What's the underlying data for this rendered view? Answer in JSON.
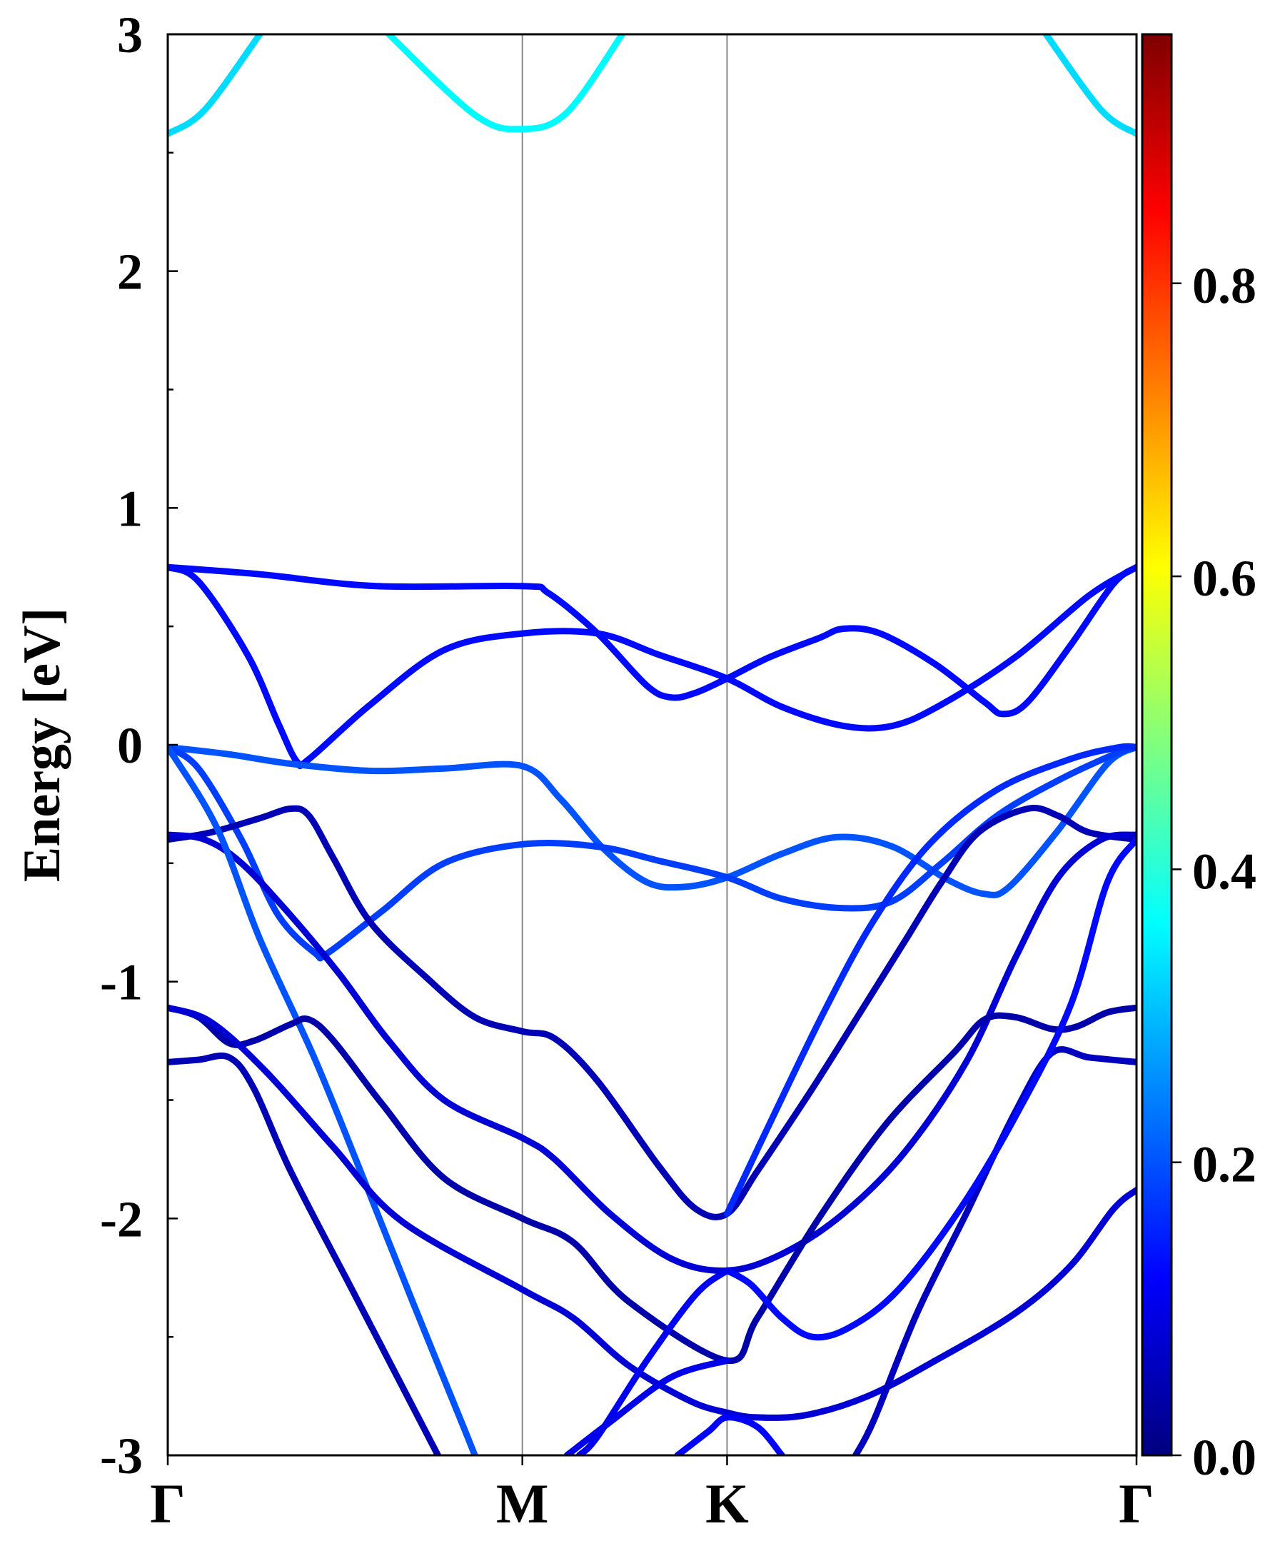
{
  "chart_data": {
    "type": "line",
    "title": "",
    "xlabel": "",
    "ylabel": "Energy [eV]",
    "ylim": [
      -3,
      3
    ],
    "y_ticks": [
      "3",
      "2",
      "1",
      "0",
      "-1",
      "-2",
      "-3"
    ],
    "y_tick_values": [
      3,
      2,
      1,
      0,
      -1,
      -2,
      -3
    ],
    "x_ticks": [
      "Γ",
      "M",
      "K",
      "Γ"
    ],
    "x_tick_positions": [
      0,
      0.5774,
      0.9107,
      1.5774
    ],
    "grid": false,
    "colorbar": {
      "colormap": "jet",
      "range": [
        0,
        0.97
      ],
      "tick_labels": [
        "0.8",
        "0.6",
        "0.4",
        "0.2",
        "0.0"
      ],
      "tick_values": [
        0.8,
        0.6,
        0.4,
        0.2,
        0.0
      ]
    },
    "series": [
      {
        "weight": 0.33,
        "points": [
          [
            0,
            2.58
          ],
          [
            0.06,
            2.68
          ],
          [
            0.15,
            3.0
          ]
        ]
      },
      {
        "weight": 0.36,
        "points": [
          [
            0.36,
            3.0
          ],
          [
            0.5,
            2.66
          ],
          [
            0.5774,
            2.6
          ],
          [
            0.65,
            2.67
          ],
          [
            0.74,
            3.0
          ]
        ]
      },
      {
        "weight": 0.33,
        "points": [
          [
            1.43,
            3.0
          ],
          [
            1.52,
            2.68
          ],
          [
            1.5774,
            2.58
          ]
        ]
      },
      {
        "weight": 0.13,
        "points": [
          [
            0,
            0.75
          ],
          [
            0.15,
            0.72
          ],
          [
            0.34,
            0.67
          ],
          [
            0.5774,
            0.67
          ],
          [
            0.62,
            0.64
          ],
          [
            0.7,
            0.47
          ],
          [
            0.78,
            0.25
          ],
          [
            0.82,
            0.2
          ],
          [
            0.86,
            0.22
          ],
          [
            0.9107,
            0.28
          ],
          [
            0.98,
            0.37
          ],
          [
            1.06,
            0.45
          ],
          [
            1.1,
            0.49
          ],
          [
            1.16,
            0.47
          ],
          [
            1.25,
            0.34
          ],
          [
            1.33,
            0.18
          ],
          [
            1.36,
            0.13
          ],
          [
            1.4,
            0.18
          ],
          [
            1.47,
            0.42
          ],
          [
            1.54,
            0.68
          ],
          [
            1.5774,
            0.75
          ]
        ]
      },
      {
        "weight": 0.13,
        "points": [
          [
            0,
            0.75
          ],
          [
            0.05,
            0.69
          ],
          [
            0.13,
            0.38
          ],
          [
            0.18,
            0.09
          ],
          [
            0.21,
            -0.07
          ],
          [
            0.23,
            -0.06
          ],
          [
            0.33,
            0.17
          ],
          [
            0.45,
            0.4
          ],
          [
            0.5774,
            0.47
          ],
          [
            0.7,
            0.47
          ],
          [
            0.8,
            0.38
          ],
          [
            0.9107,
            0.28
          ],
          [
            1.0,
            0.16
          ],
          [
            1.1,
            0.08
          ],
          [
            1.18,
            0.08
          ],
          [
            1.26,
            0.17
          ],
          [
            1.38,
            0.37
          ],
          [
            1.5,
            0.63
          ],
          [
            1.5774,
            0.75
          ]
        ]
      },
      {
        "weight": 0.2,
        "points": [
          [
            0,
            -0.01
          ],
          [
            0.1,
            -0.04
          ],
          [
            0.2,
            -0.08
          ],
          [
            0.33,
            -0.11
          ],
          [
            0.45,
            -0.1
          ],
          [
            0.5774,
            -0.09
          ],
          [
            0.64,
            -0.23
          ],
          [
            0.71,
            -0.44
          ],
          [
            0.78,
            -0.58
          ],
          [
            0.84,
            -0.6
          ],
          [
            0.9107,
            -0.56
          ],
          [
            1.0,
            -0.46
          ],
          [
            1.09,
            -0.39
          ],
          [
            1.18,
            -0.43
          ],
          [
            1.27,
            -0.57
          ],
          [
            1.33,
            -0.63
          ],
          [
            1.37,
            -0.6
          ],
          [
            1.45,
            -0.36
          ],
          [
            1.53,
            -0.08
          ],
          [
            1.5774,
            -0.01
          ]
        ]
      },
      {
        "weight": 0.18,
        "points": [
          [
            0,
            -0.01
          ],
          [
            0.05,
            -0.1
          ],
          [
            0.12,
            -0.4
          ],
          [
            0.18,
            -0.72
          ],
          [
            0.24,
            -0.88
          ],
          [
            0.26,
            -0.88
          ],
          [
            0.35,
            -0.7
          ],
          [
            0.45,
            -0.5
          ],
          [
            0.5774,
            -0.42
          ],
          [
            0.7,
            -0.43
          ],
          [
            0.8,
            -0.49
          ],
          [
            0.9107,
            -0.56
          ],
          [
            1.0,
            -0.65
          ],
          [
            1.1,
            -0.69
          ],
          [
            1.18,
            -0.66
          ],
          [
            1.26,
            -0.5
          ],
          [
            1.35,
            -0.3
          ],
          [
            1.45,
            -0.15
          ],
          [
            1.55,
            -0.03
          ],
          [
            1.5774,
            -0.01
          ]
        ]
      },
      {
        "weight": 0.05,
        "points": [
          [
            0,
            -0.4
          ],
          [
            0.07,
            -0.37
          ],
          [
            0.15,
            -0.31
          ],
          [
            0.2,
            -0.27
          ],
          [
            0.23,
            -0.3
          ],
          [
            0.27,
            -0.48
          ],
          [
            0.33,
            -0.75
          ],
          [
            0.42,
            -0.98
          ],
          [
            0.5,
            -1.15
          ],
          [
            0.5774,
            -1.21
          ],
          [
            0.63,
            -1.24
          ],
          [
            0.7,
            -1.42
          ],
          [
            0.8,
            -1.78
          ],
          [
            0.86,
            -1.96
          ],
          [
            0.9107,
            -1.98
          ],
          [
            0.96,
            -1.8
          ],
          [
            1.05,
            -1.45
          ],
          [
            1.13,
            -1.12
          ],
          [
            1.2,
            -0.83
          ],
          [
            1.26,
            -0.58
          ],
          [
            1.32,
            -0.37
          ],
          [
            1.4,
            -0.27
          ],
          [
            1.45,
            -0.3
          ],
          [
            1.5,
            -0.37
          ],
          [
            1.5774,
            -0.4
          ]
        ]
      },
      {
        "weight": 0.08,
        "points": [
          [
            0,
            -0.38
          ],
          [
            0.06,
            -0.4
          ],
          [
            0.12,
            -0.5
          ],
          [
            0.2,
            -0.72
          ],
          [
            0.28,
            -0.97
          ],
          [
            0.36,
            -1.25
          ],
          [
            0.45,
            -1.5
          ],
          [
            0.5774,
            -1.66
          ],
          [
            0.63,
            -1.75
          ],
          [
            0.72,
            -1.98
          ],
          [
            0.82,
            -2.17
          ],
          [
            0.9107,
            -2.22
          ],
          [
            1.0,
            -2.15
          ],
          [
            1.1,
            -1.98
          ],
          [
            1.2,
            -1.72
          ],
          [
            1.3,
            -1.34
          ],
          [
            1.38,
            -0.9
          ],
          [
            1.45,
            -0.56
          ],
          [
            1.52,
            -0.4
          ],
          [
            1.5774,
            -0.38
          ]
        ]
      },
      {
        "weight": 0.2,
        "points": [
          [
            0,
            -0.01
          ],
          [
            0.08,
            -0.35
          ],
          [
            0.15,
            -0.82
          ],
          [
            0.24,
            -1.33
          ],
          [
            0.32,
            -1.84
          ],
          [
            0.4,
            -2.36
          ],
          [
            0.48,
            -2.87
          ],
          [
            0.5,
            -3.0
          ]
        ]
      },
      {
        "weight": 0.16,
        "points": [
          [
            0.9107,
            -1.98
          ],
          [
            0.98,
            -1.6
          ],
          [
            1.07,
            -1.12
          ],
          [
            1.15,
            -0.74
          ],
          [
            1.24,
            -0.42
          ],
          [
            1.35,
            -0.19
          ],
          [
            1.47,
            -0.06
          ],
          [
            1.55,
            -0.01
          ],
          [
            1.5774,
            -0.01
          ]
        ]
      },
      {
        "weight": 0.04,
        "points": [
          [
            0,
            -1.11
          ],
          [
            0.05,
            -1.15
          ],
          [
            0.1,
            -1.26
          ],
          [
            0.14,
            -1.25
          ],
          [
            0.2,
            -1.18
          ],
          [
            0.23,
            -1.16
          ],
          [
            0.27,
            -1.25
          ],
          [
            0.35,
            -1.52
          ],
          [
            0.45,
            -1.83
          ],
          [
            0.5774,
            -2.0
          ],
          [
            0.66,
            -2.1
          ],
          [
            0.75,
            -2.35
          ],
          [
            0.9107,
            -2.6
          ],
          [
            0.96,
            -2.42
          ],
          [
            1.06,
            -2.0
          ],
          [
            1.17,
            -1.6
          ],
          [
            1.28,
            -1.3
          ],
          [
            1.33,
            -1.16
          ],
          [
            1.38,
            -1.15
          ],
          [
            1.44,
            -1.2
          ],
          [
            1.48,
            -1.19
          ],
          [
            1.53,
            -1.13
          ],
          [
            1.5774,
            -1.11
          ]
        ]
      },
      {
        "weight": 0.08,
        "points": [
          [
            0,
            -1.11
          ],
          [
            0.07,
            -1.17
          ],
          [
            0.16,
            -1.38
          ],
          [
            0.27,
            -1.7
          ],
          [
            0.38,
            -2.01
          ],
          [
            0.5774,
            -2.3
          ],
          [
            0.66,
            -2.42
          ],
          [
            0.75,
            -2.62
          ],
          [
            0.85,
            -2.77
          ],
          [
            0.9107,
            -2.82
          ],
          [
            0.96,
            -2.84
          ],
          [
            1.04,
            -2.83
          ],
          [
            1.14,
            -2.75
          ],
          [
            1.25,
            -2.6
          ],
          [
            1.38,
            -2.4
          ],
          [
            1.47,
            -2.2
          ],
          [
            1.54,
            -1.96
          ],
          [
            1.5774,
            -1.88
          ]
        ]
      },
      {
        "weight": 0.05,
        "points": [
          [
            0,
            -1.34
          ],
          [
            0.05,
            -1.33
          ],
          [
            0.1,
            -1.32
          ],
          [
            0.14,
            -1.45
          ],
          [
            0.2,
            -1.8
          ],
          [
            0.3,
            -2.3
          ],
          [
            0.4,
            -2.8
          ],
          [
            0.44,
            -3.0
          ]
        ]
      },
      {
        "weight": 0.06,
        "points": [
          [
            1.5774,
            -1.34
          ],
          [
            1.5,
            -1.32
          ],
          [
            1.44,
            -1.3
          ],
          [
            1.38,
            -1.55
          ],
          [
            1.3,
            -1.98
          ],
          [
            1.22,
            -2.4
          ],
          [
            1.15,
            -2.85
          ],
          [
            1.12,
            -3.0
          ]
        ]
      },
      {
        "weight": 0.13,
        "points": [
          [
            0.9107,
            -2.22
          ],
          [
            0.95,
            -2.28
          ],
          [
            1.0,
            -2.42
          ],
          [
            1.05,
            -2.5
          ],
          [
            1.11,
            -2.46
          ],
          [
            1.19,
            -2.3
          ],
          [
            1.29,
            -1.96
          ],
          [
            1.38,
            -1.57
          ],
          [
            1.47,
            -1.1
          ],
          [
            1.53,
            -0.58
          ],
          [
            1.5774,
            -0.4
          ]
        ]
      },
      {
        "weight": 0.11,
        "points": [
          [
            0.9107,
            -2.22
          ],
          [
            0.86,
            -2.32
          ],
          [
            0.78,
            -2.6
          ],
          [
            0.7,
            -2.92
          ],
          [
            0.67,
            -3.0
          ]
        ]
      },
      {
        "weight": 0.1,
        "points": [
          [
            0.65,
            -3.0
          ],
          [
            0.72,
            -2.86
          ],
          [
            0.82,
            -2.67
          ],
          [
            0.9107,
            -2.6
          ]
        ]
      },
      {
        "weight": 0.12,
        "points": [
          [
            0.83,
            -3.0
          ],
          [
            0.88,
            -2.9
          ],
          [
            0.9107,
            -2.84
          ],
          [
            0.96,
            -2.88
          ],
          [
            1.0,
            -3.0
          ]
        ]
      }
    ]
  }
}
